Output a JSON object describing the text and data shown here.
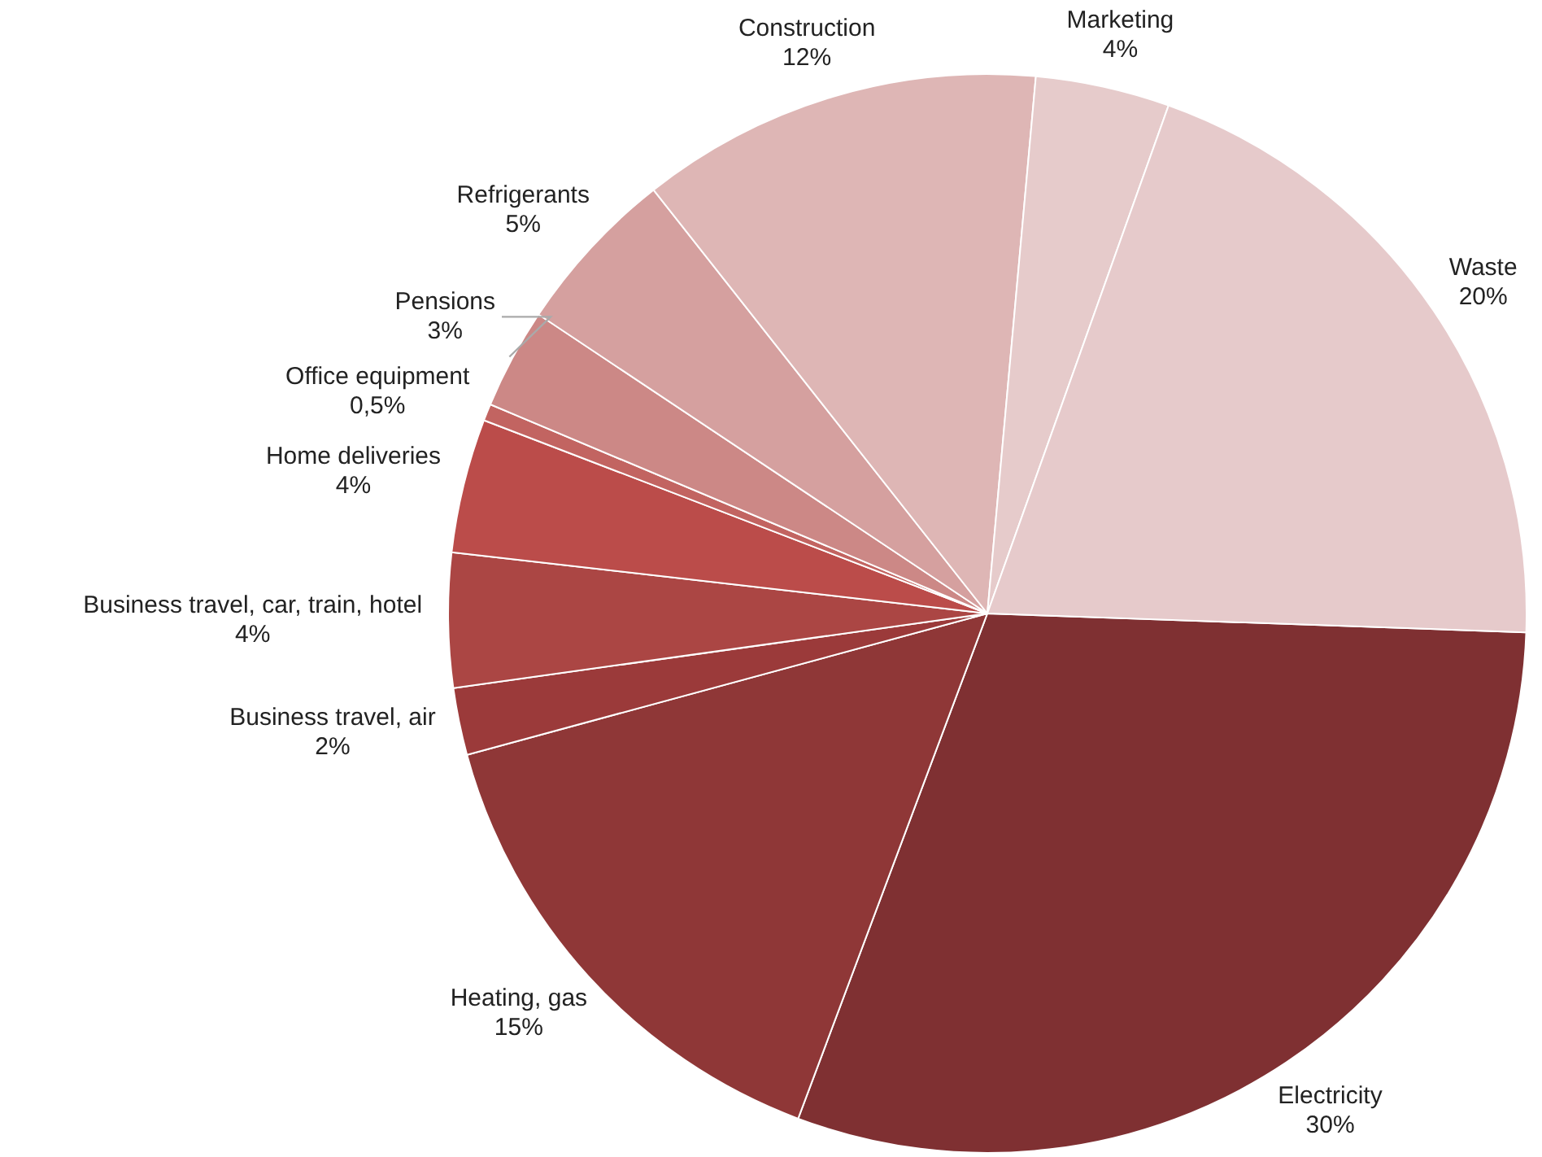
{
  "chart_data": {
    "type": "pie",
    "categories": [
      "Electricity",
      "Heating, gas",
      "Business travel, air",
      "Business travel, car, train, hotel",
      "Home deliveries",
      "Office equipment",
      "Pensions",
      "Refrigerants",
      "Construction",
      "Marketing",
      "Waste"
    ],
    "values": [
      30,
      15,
      2,
      4,
      4,
      0.5,
      3,
      5,
      12,
      4,
      20
    ],
    "value_labels": [
      "30%",
      "15%",
      "2%",
      "4%",
      "4%",
      "0,5%",
      "3%",
      "5%",
      "12%",
      "4%",
      "20%"
    ],
    "colors": [
      "#7f3032",
      "#8f3737",
      "#9b3a3a",
      "#ab4644",
      "#bb4c4a",
      "#c26461",
      "#cc8886",
      "#d5a09f",
      "#deb6b5",
      "#e6cbcb",
      "#e6cacb"
    ],
    "legend": false
  }
}
